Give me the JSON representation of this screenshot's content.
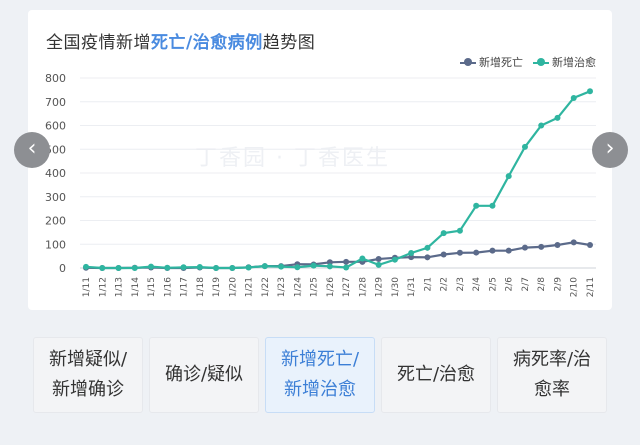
{
  "title": {
    "prefix": "全国疫情新增",
    "highlight": "死亡/治愈病例",
    "suffix": "趋势图"
  },
  "watermark": "丁香园 · 丁香医生",
  "nav": {
    "prev": "‹",
    "next": "›"
  },
  "colors": {
    "death": "#5b6a8a",
    "cure": "#2fb5a0",
    "accent": "#4a8be0"
  },
  "tabs": [
    {
      "label": "新增疑似/新增确诊",
      "active": false
    },
    {
      "label": "确诊/疑似",
      "active": false
    },
    {
      "label": "新增死亡/新增治愈",
      "active": true
    },
    {
      "label": "死亡/治愈",
      "active": false
    },
    {
      "label": "病死率/治愈率",
      "active": false
    }
  ],
  "chart_data": {
    "type": "line",
    "ylim": [
      0,
      800
    ],
    "yticks": [
      0,
      100,
      200,
      300,
      400,
      500,
      600,
      700,
      800
    ],
    "x": [
      "1/11",
      "1/12",
      "1/13",
      "1/14",
      "1/15",
      "1/16",
      "1/17",
      "1/18",
      "1/19",
      "1/20",
      "1/21",
      "1/22",
      "1/23",
      "1/24",
      "1/25",
      "1/26",
      "1/27",
      "1/28",
      "1/29",
      "1/30",
      "1/31",
      "2/1",
      "2/2",
      "2/3",
      "2/4",
      "2/5",
      "2/6",
      "2/7",
      "2/8",
      "2/9",
      "2/10",
      "2/11"
    ],
    "legend": {
      "position": "top-right"
    },
    "series": [
      {
        "name": "新增死亡",
        "color": "#5b6a8a",
        "values": [
          1,
          0,
          0,
          1,
          2,
          0,
          0,
          2,
          0,
          0,
          3,
          8,
          8,
          16,
          15,
          24,
          26,
          26,
          38,
          43,
          46,
          45,
          57,
          64,
          65,
          73,
          73,
          86,
          89,
          97,
          108,
          97
        ]
      },
      {
        "name": "新增治愈",
        "color": "#2fb5a0",
        "values": [
          5,
          0,
          0,
          0,
          6,
          1,
          3,
          4,
          0,
          0,
          2,
          8,
          6,
          3,
          10,
          7,
          2,
          40,
          13,
          35,
          63,
          85,
          147,
          157,
          262,
          262,
          387,
          510,
          600,
          632,
          716,
          744
        ]
      }
    ]
  }
}
